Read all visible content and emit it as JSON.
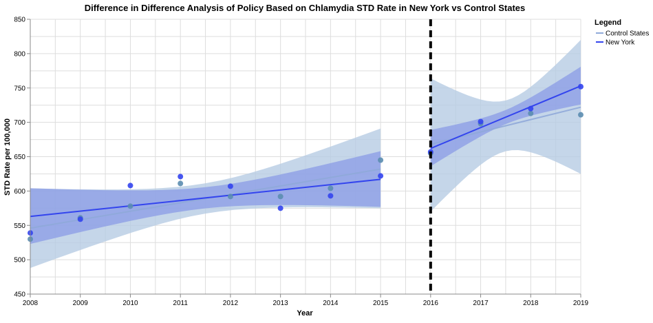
{
  "chart_data": {
    "type": "scatter",
    "title": "Difference in Difference Analysis of Policy Based on Chlamydia STD Rate in New York vs Control States",
    "xlabel": "Year",
    "ylabel": "STD Rate per 100,000",
    "xlim": [
      2008,
      2019
    ],
    "ylim": [
      450,
      850
    ],
    "x_ticks": [
      "2008",
      "2009",
      "2010",
      "2011",
      "2012",
      "2013",
      "2014",
      "2015",
      "2016",
      "2017",
      "2018",
      "2019"
    ],
    "y_ticks": [
      "450",
      "500",
      "550",
      "600",
      "650",
      "700",
      "750",
      "800",
      "850"
    ],
    "grid": true,
    "legend": {
      "title": "Legend",
      "placement": "top-right"
    },
    "policy_year": 2016,
    "series": [
      {
        "name": "Control States",
        "color": "#5b8db0",
        "line_color": "#8fa9d9",
        "band_color": "#b7cce3",
        "points": [
          {
            "x": 2008,
            "y": 530
          },
          {
            "x": 2009,
            "y": 561
          },
          {
            "x": 2010,
            "y": 578
          },
          {
            "x": 2011,
            "y": 611
          },
          {
            "x": 2012,
            "y": 592
          },
          {
            "x": 2013,
            "y": 592
          },
          {
            "x": 2014,
            "y": 604
          },
          {
            "x": 2015,
            "y": 645
          },
          {
            "x": 2016,
            "y": 655
          },
          {
            "x": 2017,
            "y": 698
          },
          {
            "x": 2018,
            "y": 713
          },
          {
            "x": 2019,
            "y": 711
          }
        ],
        "pre_fit": {
          "x": [
            2008,
            2015
          ],
          "y": [
            546,
            632
          ],
          "lower": [
            488,
            575
          ],
          "upper": [
            604,
            691
          ]
        },
        "post_fit": {
          "x": [
            2016,
            2019
          ],
          "y": [
            668,
            722
          ],
          "lower": [
            570,
            625
          ],
          "upper": [
            764,
            820
          ]
        }
      },
      {
        "name": "New York",
        "color": "#3344ee",
        "line_color": "#3344ee",
        "band_color": "#8a9be6",
        "points": [
          {
            "x": 2008,
            "y": 539
          },
          {
            "x": 2009,
            "y": 559
          },
          {
            "x": 2010,
            "y": 608
          },
          {
            "x": 2011,
            "y": 621
          },
          {
            "x": 2012,
            "y": 607
          },
          {
            "x": 2013,
            "y": 575
          },
          {
            "x": 2014,
            "y": 593
          },
          {
            "x": 2015,
            "y": 622
          },
          {
            "x": 2016,
            "y": 657
          },
          {
            "x": 2017,
            "y": 701
          },
          {
            "x": 2018,
            "y": 720
          },
          {
            "x": 2019,
            "y": 752
          }
        ],
        "pre_fit": {
          "x": [
            2008,
            2015
          ],
          "y": [
            563,
            617
          ],
          "lower": [
            523,
            577
          ],
          "upper": [
            604,
            658
          ]
        },
        "post_fit": {
          "x": [
            2016,
            2019
          ],
          "y": [
            662,
            753
          ],
          "lower": [
            636,
            726
          ],
          "upper": [
            689,
            781
          ]
        }
      }
    ]
  }
}
